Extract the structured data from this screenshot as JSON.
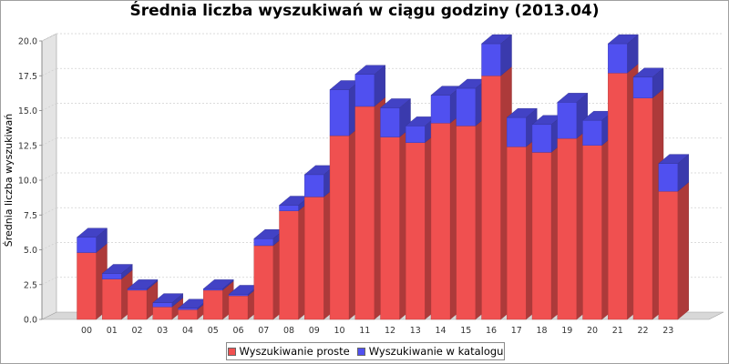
{
  "chart_data": {
    "type": "bar",
    "stacked": true,
    "style": "3d",
    "title": "Średnia liczba wyszukiwań w ciągu godziny (2013.04)",
    "xlabel": "",
    "ylabel": "Średnia liczba wyszukiwań",
    "ylim": [
      0,
      20
    ],
    "yticks": [
      "0.0",
      "2.5",
      "5.0",
      "7.5",
      "10.0",
      "12.5",
      "15.0",
      "17.5",
      "20.0"
    ],
    "grid": true,
    "legend_position": "bottom",
    "categories": [
      "00",
      "01",
      "02",
      "03",
      "04",
      "05",
      "06",
      "07",
      "08",
      "09",
      "10",
      "11",
      "12",
      "13",
      "14",
      "15",
      "16",
      "17",
      "18",
      "19",
      "20",
      "21",
      "22",
      "23"
    ],
    "series": [
      {
        "name": "Wyszukiwanie proste",
        "color": "#f05050",
        "values": [
          4.8,
          2.9,
          2.1,
          0.9,
          0.7,
          2.1,
          1.7,
          5.3,
          7.8,
          8.8,
          13.2,
          15.3,
          13.1,
          12.7,
          14.1,
          13.9,
          17.5,
          12.4,
          12.0,
          13.0,
          12.5,
          17.7,
          15.9,
          9.2
        ]
      },
      {
        "name": "Wyszukiwanie w katalogu",
        "color": "#5050f0",
        "values": [
          1.1,
          0.4,
          0.1,
          0.3,
          0.1,
          0.1,
          0.1,
          0.5,
          0.4,
          1.6,
          3.3,
          2.3,
          2.1,
          1.2,
          2.0,
          2.7,
          2.3,
          2.1,
          2.0,
          2.6,
          1.8,
          2.1,
          1.5,
          2.0
        ]
      }
    ]
  }
}
